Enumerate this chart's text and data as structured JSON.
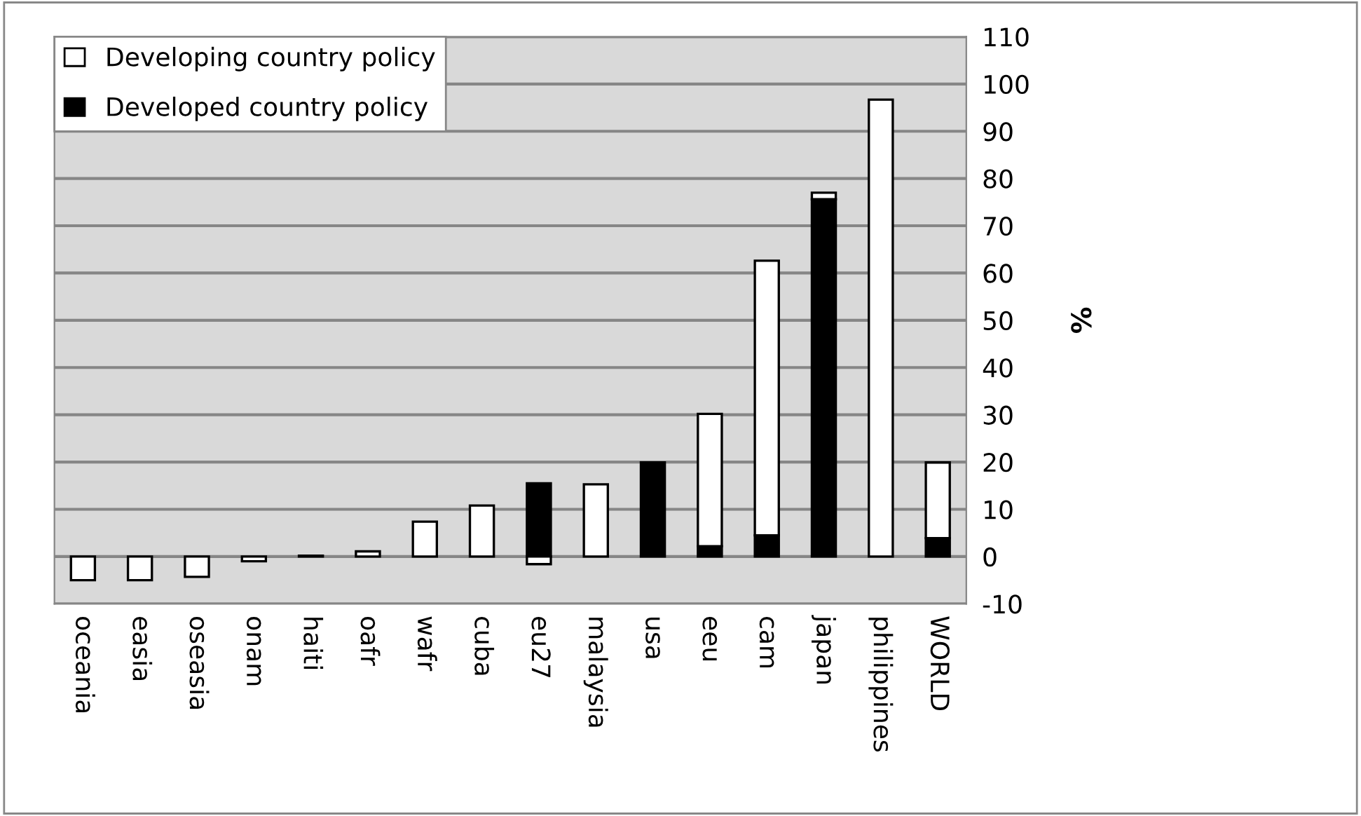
{
  "chart_data": {
    "type": "bar",
    "stacked": true,
    "ylabel": "%",
    "categories": [
      "oceania",
      "easia",
      "oseasia",
      "onam",
      "haiti",
      "oafr",
      "wafr",
      "cuba",
      "eu27",
      "malaysia",
      "usa",
      "eeu",
      "cam",
      "japan",
      "philippines",
      "WORLD"
    ],
    "series": [
      {
        "name": "Developed country policy",
        "color": "#000000",
        "values": [
          null,
          null,
          null,
          null,
          null,
          null,
          null,
          null,
          15.5,
          null,
          19.9,
          2.2,
          4.5,
          75.6,
          null,
          3.9
        ]
      },
      {
        "name": "Developing country policy",
        "color": "#ffffff",
        "values": [
          -5.0,
          -5.0,
          -4.3,
          -1.0,
          0.2,
          1.1,
          7.4,
          10.8,
          -1.6,
          15.3,
          null,
          28.0,
          58.1,
          1.4,
          96.7,
          16.0
        ]
      }
    ],
    "ylim": [
      -10,
      110
    ],
    "yticks": [
      -10,
      0,
      10,
      20,
      30,
      40,
      50,
      60,
      70,
      80,
      90,
      100,
      110
    ],
    "grid": "y",
    "legend": "top left"
  }
}
